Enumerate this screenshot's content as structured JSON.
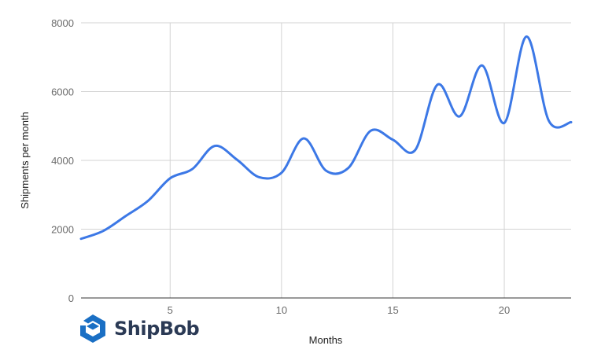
{
  "brand": {
    "name": "ShipBob",
    "color": "#1a6fc4",
    "text_color": "#2b3a55"
  },
  "chart_data": {
    "type": "line",
    "title": "",
    "xlabel": "Months",
    "ylabel": "Shipments per month",
    "xlim": [
      1,
      23
    ],
    "ylim": [
      0,
      8000
    ],
    "x_ticks": [
      5,
      10,
      15,
      20
    ],
    "y_ticks": [
      0,
      2000,
      4000,
      6000,
      8000
    ],
    "grid": true,
    "legend": "none",
    "line_color": "#3c78e6",
    "curve": "smooth",
    "series": [
      {
        "name": "Shipments per month",
        "x": [
          1,
          2,
          3,
          4,
          5,
          6,
          7,
          8,
          9,
          10,
          11,
          12,
          13,
          14,
          15,
          16,
          17,
          18,
          19,
          20,
          21,
          22,
          23
        ],
        "values": [
          1720,
          1950,
          2380,
          2820,
          3480,
          3750,
          4420,
          4020,
          3510,
          3640,
          4640,
          3700,
          3780,
          4860,
          4600,
          4300,
          6200,
          5280,
          6760,
          5090,
          7600,
          5150,
          5110
        ]
      }
    ]
  }
}
